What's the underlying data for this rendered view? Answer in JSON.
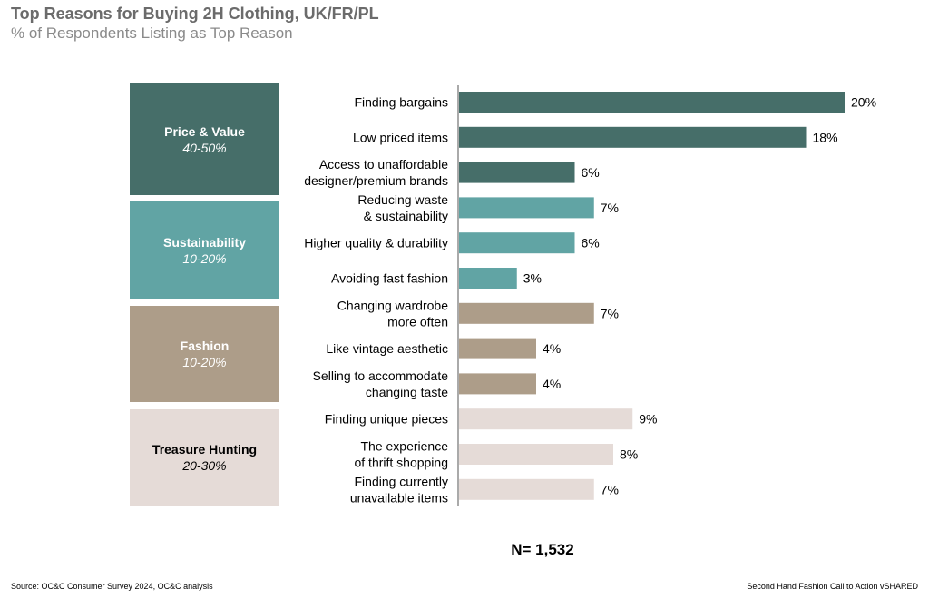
{
  "header": {
    "title": "Top Reasons for Buying 2H Clothing, UK/FR/PL",
    "subtitle": "% of Respondents Listing as Top Reason"
  },
  "groups": [
    {
      "name": "Price & Value",
      "range": "40-50%",
      "color": "#466e69",
      "text_color": "#ffffff"
    },
    {
      "name": "Sustainability",
      "range": "10-20%",
      "color": "#61a4a4",
      "text_color": "#ffffff"
    },
    {
      "name": "Fashion",
      "range": "10-20%",
      "color": "#ad9d89",
      "text_color": "#ffffff"
    },
    {
      "name": "Treasure Hunting",
      "range": "20-30%",
      "color": "#e5dbd7",
      "text_color": "#000000"
    }
  ],
  "chart_data": {
    "type": "bar",
    "orientation": "horizontal",
    "categories": [
      [
        "Finding bargains"
      ],
      [
        "Low priced items"
      ],
      [
        "Access to unaffordable",
        "designer/premium brands"
      ],
      [
        "Reducing waste",
        "& sustainability"
      ],
      [
        "Higher quality & durability"
      ],
      [
        "Avoiding fast fashion"
      ],
      [
        "Changing wardrobe",
        "more often"
      ],
      [
        "Like vintage aesthetic"
      ],
      [
        "Selling to accommodate",
        "changing taste"
      ],
      [
        "Finding unique pieces"
      ],
      [
        "The experience",
        "of thrift shopping"
      ],
      [
        "Finding currently",
        "unavailable items"
      ]
    ],
    "values": [
      20,
      18,
      6,
      7,
      6,
      3,
      7,
      4,
      4,
      9,
      8,
      7
    ],
    "value_labels": [
      "20%",
      "18%",
      "6%",
      "7%",
      "6%",
      "3%",
      "7%",
      "4%",
      "4%",
      "9%",
      "8%",
      "7%"
    ],
    "bar_group": [
      0,
      0,
      0,
      1,
      1,
      1,
      2,
      2,
      2,
      3,
      3,
      3
    ],
    "xlim": [
      0,
      20
    ]
  },
  "footer": {
    "n_label": "N= 1,532",
    "source": "Source: OC&C Consumer Survey 2024, OC&C analysis",
    "right_note": "Second Hand Fashion Call to Action vSHARED"
  }
}
